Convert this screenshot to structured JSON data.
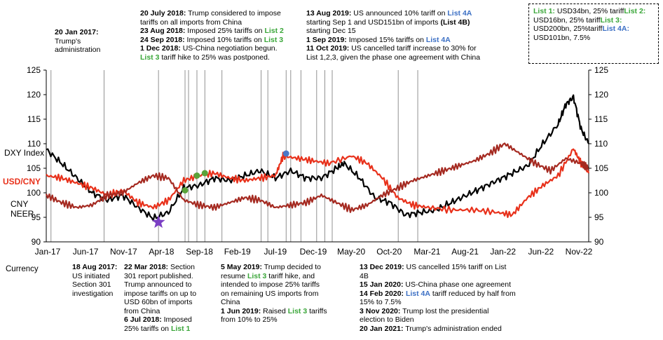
{
  "top_notes": [
    {
      "id": "n1",
      "lines": [
        [
          {
            "t": "20 Jan 2017:",
            "s": "bold"
          }
        ],
        [
          {
            "t": "Trump's"
          }
        ],
        [
          {
            "t": "administration"
          }
        ]
      ]
    },
    {
      "id": "n2",
      "lines": [
        [
          {
            "t": "20 July 2018:",
            "s": "bold"
          },
          {
            "t": " Trump considered to impose"
          }
        ],
        [
          {
            "t": "tariffs on all imports from China"
          }
        ],
        [
          {
            "t": "23 Aug 2018:",
            "s": "bold"
          },
          {
            "t": " Imposed 25% tariffs on "
          },
          {
            "t": "List 2",
            "s": "green"
          }
        ],
        [
          {
            "t": "24 Sep 2018:",
            "s": "bold"
          },
          {
            "t": "  Imposed 10% tariffs on "
          },
          {
            "t": "List 3",
            "s": "green"
          }
        ],
        [
          {
            "t": "1 Dec 2018:",
            "s": "bold"
          },
          {
            "t": " US-China negotiation begun."
          }
        ],
        [
          {
            "t": "List 3",
            "s": "green"
          },
          {
            "t": " tariff hike to 25% was postponed."
          }
        ]
      ]
    },
    {
      "id": "n3",
      "lines": [
        [
          {
            "t": "13 Aug 2019:",
            "s": "bold"
          },
          {
            "t": " US announced 10% tariff on "
          },
          {
            "t": "List 4A",
            "s": "blue"
          }
        ],
        [
          {
            "t": "starting Sep 1 and USD151bn of imports "
          },
          {
            "t": "(List 4B)",
            "s": "bold"
          }
        ],
        [
          {
            "t": "starting Dec 15"
          }
        ],
        [
          {
            "t": "1 Sep 2019:",
            "s": "bold"
          },
          {
            "t": " Imposed 15% tariffs on "
          },
          {
            "t": "List 4A",
            "s": "blue"
          }
        ],
        [
          {
            "t": "11 Oct 2019:",
            "s": "bold"
          },
          {
            "t": " US cancelled tariff increase to 30% for"
          }
        ],
        [
          {
            "t": "List 1,2,3, given the phase one agreement with China"
          }
        ]
      ]
    }
  ],
  "legend_box": [
    [
      {
        "t": "List 1:",
        "s": "green"
      },
      {
        "t": " USD34bn, 25% tariff"
      }
    ],
    [
      {
        "t": "List 2:",
        "s": "green"
      },
      {
        "t": " USD16bn, 25% tariff"
      }
    ],
    [
      {
        "t": "List 3:",
        "s": "green"
      },
      {
        "t": " USD200bn, 25%"
      }
    ],
    [
      {
        "t": "tariff"
      }
    ],
    [
      {
        "t": "List 4A:",
        "s": "blue"
      },
      {
        "t": " USD101bn, 7.5%"
      }
    ]
  ],
  "bottom_notes": [
    {
      "id": "c0",
      "lines": [
        [
          {
            "t": "Currency"
          }
        ]
      ]
    },
    {
      "id": "b1",
      "lines": [
        [
          {
            "t": "18 Aug 2017:",
            "s": "bold"
          }
        ],
        [
          {
            "t": "US initiated"
          }
        ],
        [
          {
            "t": "Section 301"
          }
        ],
        [
          {
            "t": "investigation"
          }
        ]
      ]
    },
    {
      "id": "b2",
      "lines": [
        [
          {
            "t": "22 Mar 2018:",
            "s": "bold"
          },
          {
            "t": " Section"
          }
        ],
        [
          {
            "t": "301 report published."
          }
        ],
        [
          {
            "t": "Trump announced to"
          }
        ],
        [
          {
            "t": "impose tariffs on up to"
          }
        ],
        [
          {
            "t": "USD 60bn of imports"
          }
        ],
        [
          {
            "t": "from China"
          }
        ],
        [
          {
            "t": "6 Jul 2018:",
            "s": "bold"
          },
          {
            "t": " Imposed"
          }
        ],
        [
          {
            "t": "25% tariffs on "
          },
          {
            "t": "List 1",
            "s": "green"
          }
        ]
      ]
    },
    {
      "id": "b3",
      "lines": [
        [
          {
            "t": "5 May 2019:",
            "s": "bold"
          },
          {
            "t": " Trump decided to"
          }
        ],
        [
          {
            "t": "resume "
          },
          {
            "t": "List 3",
            "s": "green"
          },
          {
            "t": " tariff hike, and"
          }
        ],
        [
          {
            "t": "intended to impose 25% tariffs"
          }
        ],
        [
          {
            "t": "on remaining US imports from"
          }
        ],
        [
          {
            "t": "China"
          }
        ],
        [
          {
            "t": "1 Jun 2019:",
            "s": "bold"
          },
          {
            "t": " Raised "
          },
          {
            "t": "List 3",
            "s": "green"
          },
          {
            "t": " tariffs"
          }
        ],
        [
          {
            "t": "from 10% to 25%"
          }
        ]
      ]
    },
    {
      "id": "b4",
      "lines": [
        [
          {
            "t": "13 Dec 2019:",
            "s": "bold"
          },
          {
            "t": " US cancelled 15% tariff on List"
          }
        ],
        [
          {
            "t": "4B"
          }
        ],
        [
          {
            "t": "15 Jan 2020:",
            "s": "bold"
          },
          {
            "t": " US-China phase one agreement"
          }
        ],
        [
          {
            "t": "14 Feb 2020:",
            "s": "bold"
          },
          {
            "t": " "
          },
          {
            "t": "List 4A",
            "s": "blue"
          },
          {
            "t": " tariff reduced by half from"
          }
        ],
        [
          {
            "t": "15% to 7.5%"
          }
        ],
        [
          {
            "t": "3 Nov 2020:",
            "s": "bold"
          },
          {
            "t": " Trump lost the presidential"
          }
        ],
        [
          {
            "t": "election to Biden"
          }
        ],
        [
          {
            "t": "20 Jan 2021:",
            "s": "bold"
          },
          {
            "t": " Trump's administration ended"
          }
        ]
      ]
    }
  ],
  "chart_data": {
    "type": "line",
    "x_axis_ticks": [
      "Jan-17",
      "Jun-17",
      "Nov-17",
      "Apr-18",
      "Sep-18",
      "Feb-19",
      "Jul-19",
      "Dec-19",
      "May-20",
      "Oct-20",
      "Mar-21",
      "Aug-21",
      "Jan-22",
      "Jun-22",
      "Nov-22"
    ],
    "y_left_ticks": [
      90,
      95,
      100,
      105,
      110,
      115,
      120,
      125
    ],
    "y_right_ticks": [
      90,
      95,
      100,
      105,
      110,
      115,
      120,
      125
    ],
    "ylim": [
      90,
      125
    ],
    "xlim": [
      "2017-01",
      "2022-12"
    ],
    "series_labels": [
      "DXY Index",
      "USD/CNY",
      "CNY NEER"
    ],
    "series": [
      {
        "name": "DXY Index",
        "color": "#000000",
        "x": [
          "2017-01",
          "2017-03",
          "2017-05",
          "2017-07",
          "2017-09",
          "2017-11",
          "2018-01",
          "2018-03",
          "2018-05",
          "2018-07",
          "2018-09",
          "2018-11",
          "2019-01",
          "2019-03",
          "2019-05",
          "2019-07",
          "2019-09",
          "2019-11",
          "2020-01",
          "2020-03",
          "2020-04",
          "2020-06",
          "2020-08",
          "2020-10",
          "2020-12",
          "2021-02",
          "2021-04",
          "2021-06",
          "2021-08",
          "2021-10",
          "2021-12",
          "2022-02",
          "2022-04",
          "2022-06",
          "2022-08",
          "2022-09",
          "2022-10",
          "2022-11",
          "2022-12"
        ],
        "values": [
          108.8,
          106,
          103,
          100,
          98.5,
          99.5,
          97,
          94.8,
          96,
          101,
          101.5,
          103,
          102.5,
          103.5,
          104.5,
          103,
          104.5,
          103,
          103,
          105,
          106,
          103,
          99,
          98,
          95.5,
          96,
          96.5,
          98,
          99.5,
          101,
          102.5,
          104,
          105.5,
          110,
          114,
          118,
          119.5,
          113,
          110
        ]
      },
      {
        "name": "USD/CNY",
        "color": "#e8311b",
        "x": [
          "2017-01",
          "2017-03",
          "2017-05",
          "2017-07",
          "2017-09",
          "2017-11",
          "2018-01",
          "2018-03",
          "2018-05",
          "2018-07",
          "2018-09",
          "2018-11",
          "2019-01",
          "2019-03",
          "2019-05",
          "2019-07",
          "2019-08",
          "2019-10",
          "2019-12",
          "2020-02",
          "2020-05",
          "2020-07",
          "2020-09",
          "2020-11",
          "2021-01",
          "2021-03",
          "2021-06",
          "2021-09",
          "2021-12",
          "2022-02",
          "2022-04",
          "2022-06",
          "2022-08",
          "2022-10",
          "2022-11",
          "2022-12"
        ],
        "values": [
          103.5,
          103,
          102,
          101,
          99.5,
          100.5,
          98,
          97,
          98.5,
          102.5,
          103.5,
          104,
          103,
          102.5,
          103,
          103.5,
          107.5,
          107,
          106.5,
          106,
          107.5,
          106,
          103,
          99,
          97.5,
          97,
          96.5,
          96.5,
          96,
          95.5,
          99,
          101.5,
          103.5,
          109,
          106,
          104
        ]
      },
      {
        "name": "CNY NEER",
        "color": "#a52a21",
        "x": [
          "2017-01",
          "2017-03",
          "2017-05",
          "2017-07",
          "2017-09",
          "2017-11",
          "2018-01",
          "2018-03",
          "2018-05",
          "2018-07",
          "2018-09",
          "2018-11",
          "2019-01",
          "2019-03",
          "2019-05",
          "2019-07",
          "2019-09",
          "2019-11",
          "2020-01",
          "2020-03",
          "2020-05",
          "2020-07",
          "2020-09",
          "2020-11",
          "2021-01",
          "2021-03",
          "2021-05",
          "2021-07",
          "2021-09",
          "2021-11",
          "2022-01",
          "2022-03",
          "2022-05",
          "2022-07",
          "2022-09",
          "2022-11",
          "2022-12"
        ],
        "values": [
          99.5,
          98,
          97,
          97.5,
          99.5,
          100,
          102,
          103.5,
          103,
          98.5,
          97.5,
          97,
          98,
          99,
          98.5,
          97,
          97.5,
          98,
          99.5,
          98,
          96.5,
          97.5,
          99.5,
          101,
          102.5,
          103.5,
          104.5,
          105.5,
          106.5,
          108,
          110,
          108,
          106,
          104.5,
          107,
          106,
          105
        ]
      }
    ],
    "event_lines": [
      "2017-01-20",
      "2017-08-18",
      "2018-03-22",
      "2018-07-06",
      "2018-07-20",
      "2018-08-23",
      "2018-09-24",
      "2018-12-01",
      "2019-05-05",
      "2019-06-01",
      "2019-08-13",
      "2019-09-01",
      "2019-10-11",
      "2019-12-13",
      "2020-01-15",
      "2020-02-14",
      "2020-11-03",
      "2021-01-20"
    ],
    "markers": [
      {
        "kind": "star",
        "color": "#7b3fc4",
        "x": "2018-03-22",
        "y": 94
      },
      {
        "kind": "dot",
        "color": "#5aa33a",
        "x": "2018-07-06",
        "y": 100.5
      },
      {
        "kind": "dot",
        "color": "#5aa33a",
        "x": "2018-08-23",
        "y": 103.5
      },
      {
        "kind": "dot",
        "color": "#5aa33a",
        "x": "2018-09-24",
        "y": 104
      },
      {
        "kind": "dot",
        "color": "#4a78c8",
        "x": "2019-08-13",
        "y": 108
      }
    ]
  }
}
